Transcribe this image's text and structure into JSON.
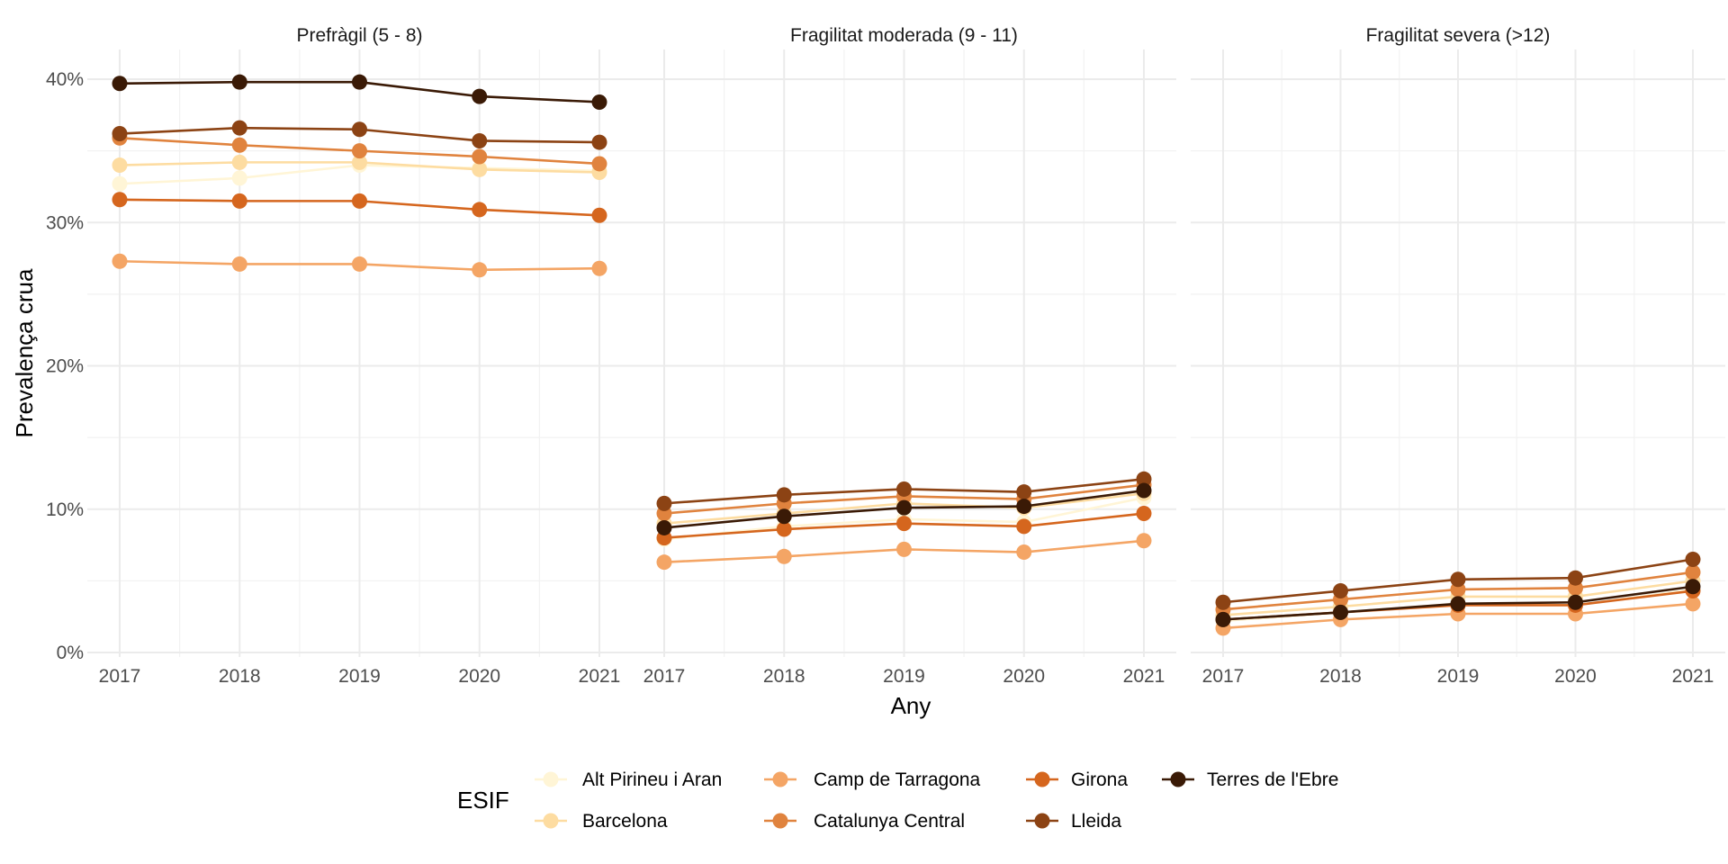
{
  "chart_data": {
    "type": "line",
    "x": [
      2017,
      2018,
      2019,
      2020,
      2021
    ],
    "xlabel": "Any",
    "ylabel": "Prevalença crua",
    "ylim": [
      0,
      0.4
    ],
    "y_ticks": [
      0,
      0.1,
      0.2,
      0.3,
      0.4
    ],
    "y_tick_labels": [
      "0%",
      "10%",
      "20%",
      "30%",
      "40%"
    ],
    "legend_title": "ESIF",
    "legend_position": "bottom",
    "grid": true,
    "panels": [
      {
        "title": "Prefràgil (5 - 8)",
        "series": [
          {
            "name": "Alt Pirineu i Aran",
            "values": [
              0.327,
              0.331,
              0.34,
              0.338,
              0.336
            ]
          },
          {
            "name": "Barcelona",
            "values": [
              0.34,
              0.342,
              0.342,
              0.337,
              0.335
            ]
          },
          {
            "name": "Camp de Tarragona",
            "values": [
              0.273,
              0.271,
              0.271,
              0.267,
              0.268
            ]
          },
          {
            "name": "Catalunya Central",
            "values": [
              0.359,
              0.354,
              0.35,
              0.346,
              0.341
            ]
          },
          {
            "name": "Girona",
            "values": [
              0.316,
              0.315,
              0.315,
              0.309,
              0.305
            ]
          },
          {
            "name": "Lleida",
            "values": [
              0.362,
              0.366,
              0.365,
              0.357,
              0.356
            ]
          },
          {
            "name": "Terres de l'Ebre",
            "values": [
              0.397,
              0.398,
              0.398,
              0.388,
              0.384
            ]
          }
        ]
      },
      {
        "title": "Fragilitat moderada (9 - 11)",
        "series": [
          {
            "name": "Alt Pirineu i Aran",
            "values": [
              0.079,
              0.088,
              0.093,
              0.091,
              0.108
            ]
          },
          {
            "name": "Barcelona",
            "values": [
              0.09,
              0.097,
              0.104,
              0.101,
              0.111
            ]
          },
          {
            "name": "Camp de Tarragona",
            "values": [
              0.063,
              0.067,
              0.072,
              0.07,
              0.078
            ]
          },
          {
            "name": "Catalunya Central",
            "values": [
              0.097,
              0.104,
              0.109,
              0.107,
              0.117
            ]
          },
          {
            "name": "Girona",
            "values": [
              0.08,
              0.086,
              0.09,
              0.088,
              0.097
            ]
          },
          {
            "name": "Lleida",
            "values": [
              0.104,
              0.11,
              0.114,
              0.112,
              0.121
            ]
          },
          {
            "name": "Terres de l'Ebre",
            "values": [
              0.087,
              0.095,
              0.101,
              0.102,
              0.113
            ]
          }
        ]
      },
      {
        "title": "Fragilitat severa (>12)",
        "series": [
          {
            "name": "Alt Pirineu i Aran",
            "values": [
              0.022,
              0.028,
              0.034,
              0.033,
              0.044
            ]
          },
          {
            "name": "Barcelona",
            "values": [
              0.026,
              0.032,
              0.039,
              0.039,
              0.05
            ]
          },
          {
            "name": "Camp de Tarragona",
            "values": [
              0.017,
              0.023,
              0.027,
              0.027,
              0.034
            ]
          },
          {
            "name": "Catalunya Central",
            "values": [
              0.03,
              0.037,
              0.044,
              0.045,
              0.056
            ]
          },
          {
            "name": "Girona",
            "values": [
              0.023,
              0.028,
              0.033,
              0.033,
              0.043
            ]
          },
          {
            "name": "Lleida",
            "values": [
              0.035,
              0.043,
              0.051,
              0.052,
              0.065
            ]
          },
          {
            "name": "Terres de l'Ebre",
            "values": [
              0.023,
              0.028,
              0.034,
              0.035,
              0.046
            ]
          }
        ]
      }
    ],
    "colors": {
      "Alt Pirineu i Aran": "#FFF5D6",
      "Barcelona": "#FDDCA1",
      "Camp de Tarragona": "#F4A565",
      "Catalunya Central": "#E0833E",
      "Girona": "#D5661E",
      "Lleida": "#8C4314",
      "Terres de l'Ebre": "#3A1A06"
    }
  }
}
